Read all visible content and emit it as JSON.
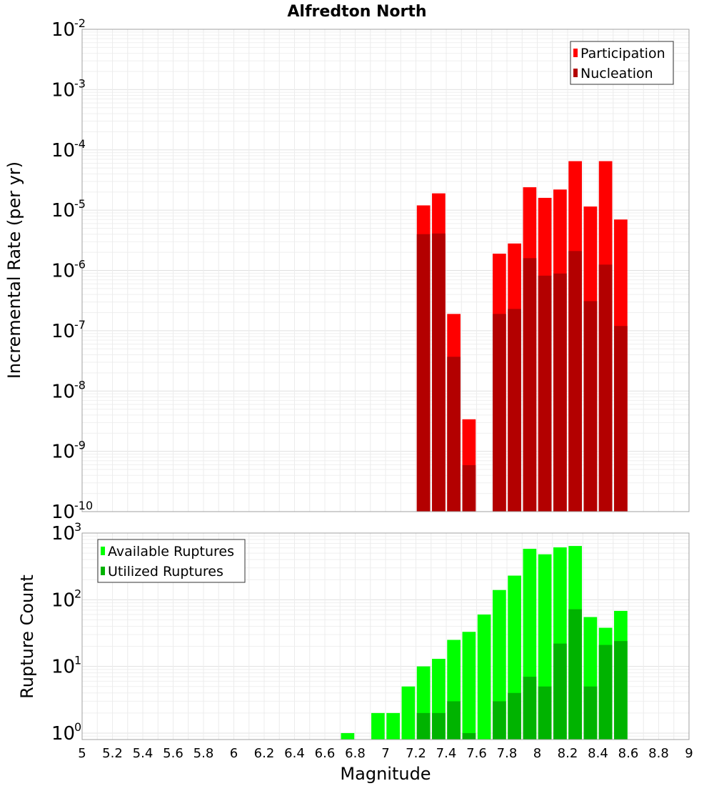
{
  "chart_data": [
    {
      "panel": "top",
      "type": "bar",
      "title": "Alfredton North",
      "ylabel": "Incremental Rate (per yr)",
      "yscale": "log",
      "ylim": [
        1e-10,
        0.01
      ],
      "xlim": [
        5,
        9
      ],
      "ytick_labels": [
        {
          "base": "10",
          "exp": "-2",
          "value": 0.01
        },
        {
          "base": "10",
          "exp": "-3",
          "value": 0.001
        },
        {
          "base": "10",
          "exp": "-4",
          "value": 0.0001
        },
        {
          "base": "10",
          "exp": "-5",
          "value": 1e-05
        },
        {
          "base": "10",
          "exp": "-6",
          "value": 1e-06
        },
        {
          "base": "10",
          "exp": "-7",
          "value": 1e-07
        },
        {
          "base": "10",
          "exp": "-8",
          "value": 1e-08
        },
        {
          "base": "10",
          "exp": "-9",
          "value": 1e-09
        },
        {
          "base": "10",
          "exp": "-10",
          "value": 1e-10
        }
      ],
      "legend_position": "top-right",
      "legend": [
        "Participation",
        "Nucleation"
      ],
      "series": [
        {
          "name": "Participation",
          "color": "#ff0000",
          "x": [
            7.25,
            7.35,
            7.45,
            7.55,
            7.75,
            7.85,
            7.95,
            8.05,
            8.15,
            8.25,
            8.35,
            8.45,
            8.55
          ],
          "values": [
            1.2e-05,
            1.9e-05,
            1.9e-07,
            3.4e-09,
            1.9e-06,
            2.8e-06,
            2.4e-05,
            1.6e-05,
            2.2e-05,
            6.5e-05,
            1.15e-05,
            6.5e-05,
            7e-06
          ]
        },
        {
          "name": "Nucleation",
          "color": "#b30000",
          "x": [
            7.25,
            7.35,
            7.45,
            7.55,
            7.75,
            7.85,
            7.95,
            8.05,
            8.15,
            8.25,
            8.35,
            8.45,
            8.55
          ],
          "values": [
            4e-06,
            4.1e-06,
            3.7e-08,
            5.9e-10,
            1.9e-07,
            2.3e-07,
            1.6e-06,
            8.2e-07,
            8.9e-07,
            2.1e-06,
            3.1e-07,
            1.25e-06,
            1.2e-07
          ]
        }
      ]
    },
    {
      "panel": "bottom",
      "type": "bar",
      "ylabel": "Rupture Count",
      "xlabel": "Magnitude",
      "yscale": "log",
      "ylim": [
        0.8,
        1000
      ],
      "xlim": [
        5,
        9
      ],
      "ytick_labels": [
        {
          "base": "10",
          "exp": "3",
          "value": 1000
        },
        {
          "base": "10",
          "exp": "2",
          "value": 100
        },
        {
          "base": "10",
          "exp": "1",
          "value": 10
        },
        {
          "base": "10",
          "exp": "0",
          "value": 1
        }
      ],
      "xtick_labels": [
        "5",
        "5.2",
        "5.4",
        "5.6",
        "5.8",
        "6",
        "6.2",
        "6.4",
        "6.6",
        "6.8",
        "7",
        "7.2",
        "7.4",
        "7.6",
        "7.8",
        "8",
        "8.2",
        "8.4",
        "8.6",
        "8.8",
        "9"
      ],
      "xtick_values": [
        5,
        5.2,
        5.4,
        5.6,
        5.8,
        6,
        6.2,
        6.4,
        6.6,
        6.8,
        7,
        7.2,
        7.4,
        7.6,
        7.8,
        8,
        8.2,
        8.4,
        8.6,
        8.8,
        9
      ],
      "legend_position": "top-left",
      "legend": [
        "Available Ruptures",
        "Utilized Ruptures"
      ],
      "series": [
        {
          "name": "Available Ruptures",
          "color": "#00ff00",
          "x": [
            6.75,
            6.95,
            7.05,
            7.15,
            7.25,
            7.35,
            7.45,
            7.55,
            7.65,
            7.75,
            7.85,
            7.95,
            8.05,
            8.15,
            8.25,
            8.35,
            8.45,
            8.55
          ],
          "values": [
            1,
            2,
            2,
            5,
            10,
            13,
            25,
            33,
            60,
            140,
            230,
            580,
            480,
            610,
            640,
            55,
            38,
            68
          ]
        },
        {
          "name": "Utilized Ruptures",
          "color": "#00b300",
          "x": [
            7.25,
            7.35,
            7.45,
            7.55,
            7.75,
            7.85,
            7.95,
            8.05,
            8.15,
            8.25,
            8.35,
            8.45,
            8.55
          ],
          "values": [
            2,
            2,
            3,
            1,
            3,
            4,
            7,
            5,
            22,
            72,
            5,
            21,
            24
          ]
        }
      ]
    }
  ]
}
